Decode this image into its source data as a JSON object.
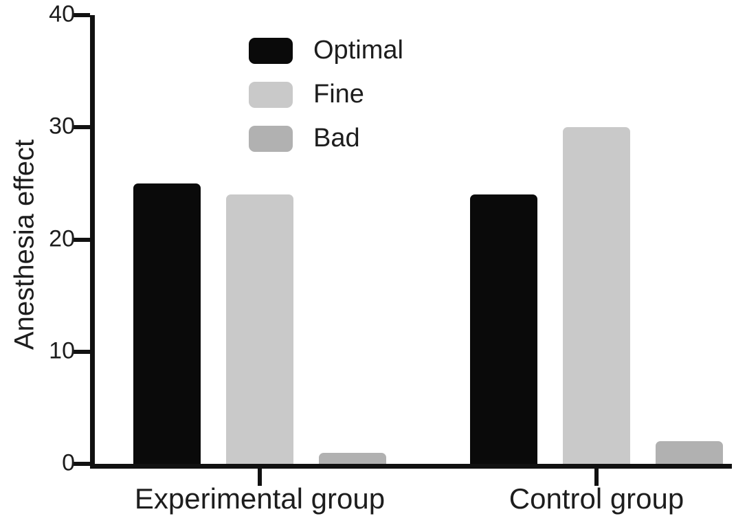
{
  "chart_data": {
    "type": "bar",
    "title": "",
    "ylabel": "Anesthesia effect",
    "xlabel": "",
    "categories": [
      "Experimental group",
      "Control group"
    ],
    "series": [
      {
        "name": "Optimal",
        "color": "#0a0a0a",
        "values": [
          25,
          24
        ]
      },
      {
        "name": "Fine",
        "color": "#c9c9c9",
        "values": [
          24,
          30
        ]
      },
      {
        "name": "Bad",
        "color": "#b1b1b1",
        "values": [
          1,
          2
        ]
      }
    ],
    "ylim": [
      0,
      40
    ],
    "yticks": [
      0,
      10,
      20,
      30,
      40
    ],
    "grid": false,
    "legend_position": "upper-left",
    "axis_color": "#111111",
    "text_color": "#1d1d1d",
    "background_color": "#ffffff"
  }
}
